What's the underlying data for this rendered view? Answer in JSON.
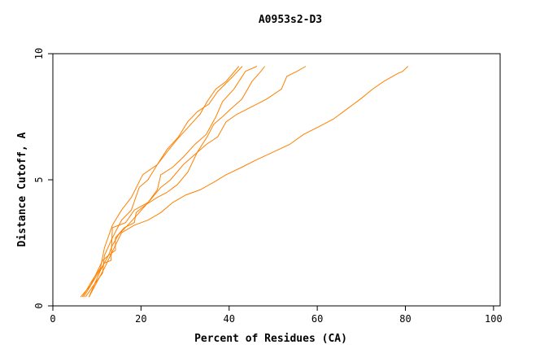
{
  "chart_data": {
    "type": "line",
    "title": "A0953s2-D3",
    "xlabel": "Percent of Residues (CA)",
    "ylabel": "Distance Cutoff, A",
    "xlim": [
      0,
      101.5
    ],
    "ylim": [
      0,
      10
    ],
    "xticks": [
      0,
      20,
      40,
      60,
      80,
      100
    ],
    "yticks": [
      0,
      5,
      10
    ],
    "xtick_labels": [
      "0",
      "20",
      "40",
      "60",
      "80",
      "100"
    ],
    "ytick_labels": [
      "0",
      "5",
      "10"
    ],
    "grid": false,
    "line_color": "#ff8000",
    "series": [
      {
        "points": [
          [
            6.7,
            0.35
          ],
          [
            8.9,
            1.0
          ],
          [
            10.8,
            1.5
          ],
          [
            11.7,
            2.3
          ],
          [
            13.5,
            3.2
          ],
          [
            15.6,
            3.8
          ],
          [
            17.8,
            4.3
          ],
          [
            20.4,
            5.2
          ],
          [
            23.7,
            5.6
          ],
          [
            25.9,
            6.2
          ],
          [
            28.5,
            6.7
          ],
          [
            30.6,
            7.3
          ],
          [
            32.8,
            7.7
          ],
          [
            35.4,
            8.0
          ],
          [
            37.4,
            8.5
          ],
          [
            40.3,
            9.0
          ],
          [
            43.0,
            9.5
          ]
        ]
      },
      {
        "points": [
          [
            7.4,
            0.35
          ],
          [
            9.6,
            0.9
          ],
          [
            11.3,
            1.3
          ],
          [
            11.7,
            2.0
          ],
          [
            13.5,
            2.7
          ],
          [
            15.6,
            3.4
          ],
          [
            17.8,
            3.8
          ],
          [
            19.6,
            4.7
          ],
          [
            21.6,
            5.0
          ],
          [
            23.7,
            5.6
          ],
          [
            25.9,
            6.1
          ],
          [
            28.2,
            6.6
          ],
          [
            31.3,
            7.2
          ],
          [
            33.4,
            7.6
          ],
          [
            35.0,
            8.1
          ],
          [
            37.0,
            8.6
          ],
          [
            39.3,
            8.9
          ],
          [
            42.2,
            9.5
          ]
        ]
      },
      {
        "points": [
          [
            7.0,
            0.35
          ],
          [
            9.6,
            1.1
          ],
          [
            11.7,
            1.7
          ],
          [
            13.2,
            1.8
          ],
          [
            13.5,
            3.1
          ],
          [
            16.5,
            3.3
          ],
          [
            18.5,
            3.8
          ],
          [
            21.6,
            4.1
          ],
          [
            23.7,
            4.6
          ],
          [
            24.5,
            5.2
          ],
          [
            27.2,
            5.5
          ],
          [
            29.6,
            5.9
          ],
          [
            32.2,
            6.4
          ],
          [
            34.8,
            6.8
          ],
          [
            37.0,
            7.5
          ],
          [
            38.5,
            8.1
          ],
          [
            41.1,
            8.6
          ],
          [
            43.7,
            9.3
          ],
          [
            46.3,
            9.5
          ]
        ]
      },
      {
        "points": [
          [
            8.2,
            0.35
          ],
          [
            10.8,
            1.4
          ],
          [
            12.6,
            2.0
          ],
          [
            14.2,
            2.2
          ],
          [
            14.2,
            2.7
          ],
          [
            16.2,
            3.1
          ],
          [
            18.5,
            3.3
          ],
          [
            18.9,
            3.7
          ],
          [
            21.0,
            4.0
          ],
          [
            23.7,
            4.3
          ],
          [
            25.9,
            4.5
          ],
          [
            28.2,
            4.8
          ],
          [
            30.6,
            5.3
          ],
          [
            32.8,
            6.1
          ],
          [
            35.0,
            6.7
          ],
          [
            36.5,
            7.2
          ],
          [
            38.5,
            7.5
          ],
          [
            40.3,
            7.8
          ],
          [
            42.9,
            8.2
          ],
          [
            45.2,
            8.9
          ],
          [
            47.2,
            9.3
          ],
          [
            48.1,
            9.5
          ]
        ]
      },
      {
        "points": [
          [
            8.2,
            0.35
          ],
          [
            11.7,
            1.5
          ],
          [
            13.9,
            2.3
          ],
          [
            15.6,
            2.9
          ],
          [
            18.5,
            3.2
          ],
          [
            21.6,
            3.4
          ],
          [
            24.5,
            3.7
          ],
          [
            27.2,
            4.1
          ],
          [
            30.2,
            4.4
          ],
          [
            33.4,
            4.6
          ],
          [
            36.5,
            4.9
          ],
          [
            39.3,
            5.2
          ],
          [
            42.9,
            5.5
          ],
          [
            46.3,
            5.8
          ],
          [
            50.0,
            6.1
          ],
          [
            53.7,
            6.4
          ],
          [
            56.9,
            6.8
          ],
          [
            60.3,
            7.1
          ],
          [
            63.6,
            7.4
          ],
          [
            66.7,
            7.8
          ],
          [
            69.8,
            8.2
          ],
          [
            72.6,
            8.6
          ],
          [
            75.1,
            8.9
          ],
          [
            78.1,
            9.2
          ],
          [
            79.4,
            9.3
          ],
          [
            80.6,
            9.5
          ]
        ]
      },
      {
        "points": [
          [
            6.3,
            0.35
          ],
          [
            8.5,
            0.8
          ],
          [
            11.3,
            1.8
          ],
          [
            12.6,
            2.0
          ],
          [
            13.5,
            2.4
          ],
          [
            14.8,
            2.8
          ],
          [
            17.0,
            3.2
          ],
          [
            19.6,
            3.7
          ],
          [
            22.1,
            4.2
          ],
          [
            24.5,
            4.7
          ],
          [
            26.7,
            5.0
          ],
          [
            29.6,
            5.6
          ],
          [
            32.2,
            6.0
          ],
          [
            34.8,
            6.4
          ],
          [
            37.4,
            6.7
          ],
          [
            39.3,
            7.3
          ],
          [
            41.8,
            7.6
          ],
          [
            45.2,
            7.9
          ],
          [
            48.5,
            8.2
          ],
          [
            51.9,
            8.6
          ],
          [
            53.1,
            9.1
          ],
          [
            55.4,
            9.3
          ],
          [
            57.4,
            9.5
          ]
        ]
      }
    ]
  }
}
